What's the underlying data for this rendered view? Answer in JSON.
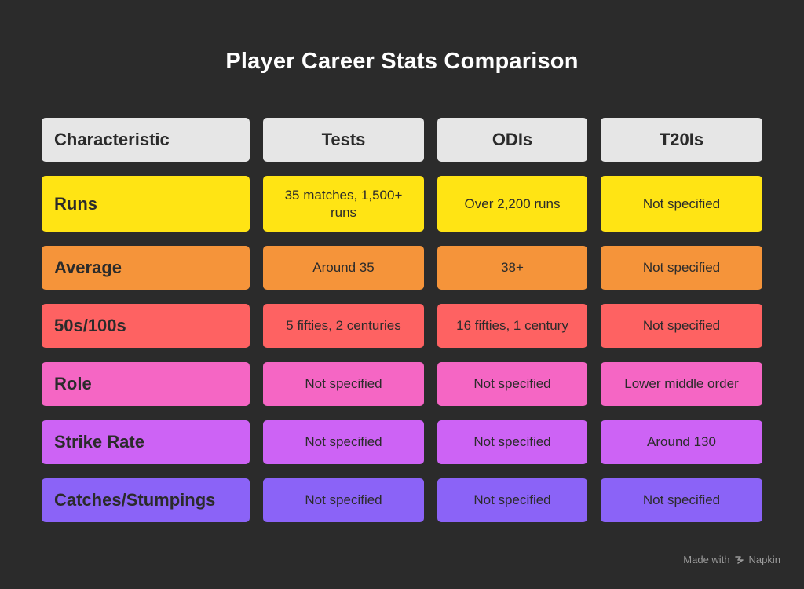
{
  "title": "Player Career Stats Comparison",
  "columns": [
    "Characteristic",
    "Tests",
    "ODIs",
    "T20Is"
  ],
  "rows": [
    {
      "label": "Runs",
      "color": "#ffe414",
      "cells": [
        "35 matches, 1,500+ runs",
        "Over 2,200 runs",
        "Not specified"
      ]
    },
    {
      "label": "Average",
      "color": "#f5943a",
      "cells": [
        "Around 35",
        "38+",
        "Not specified"
      ]
    },
    {
      "label": "50s/100s",
      "color": "#fe6262",
      "cells": [
        "5 fifties, 2 centuries",
        "16 fifties, 1 century",
        "Not specified"
      ]
    },
    {
      "label": "Role",
      "color": "#f566c4",
      "cells": [
        "Not specified",
        "Not specified",
        "Lower middle order"
      ]
    },
    {
      "label": "Strike Rate",
      "color": "#cd63f5",
      "cells": [
        "Not specified",
        "Not specified",
        "Around 130"
      ]
    },
    {
      "label": "Catches/Stumpings",
      "color": "#8b63f7",
      "cells": [
        "Not specified",
        "Not specified",
        "Not specified"
      ]
    }
  ],
  "footer": {
    "made_with": "Made with",
    "brand": "Napkin",
    "brand_icon": "napkin-logo-icon"
  }
}
